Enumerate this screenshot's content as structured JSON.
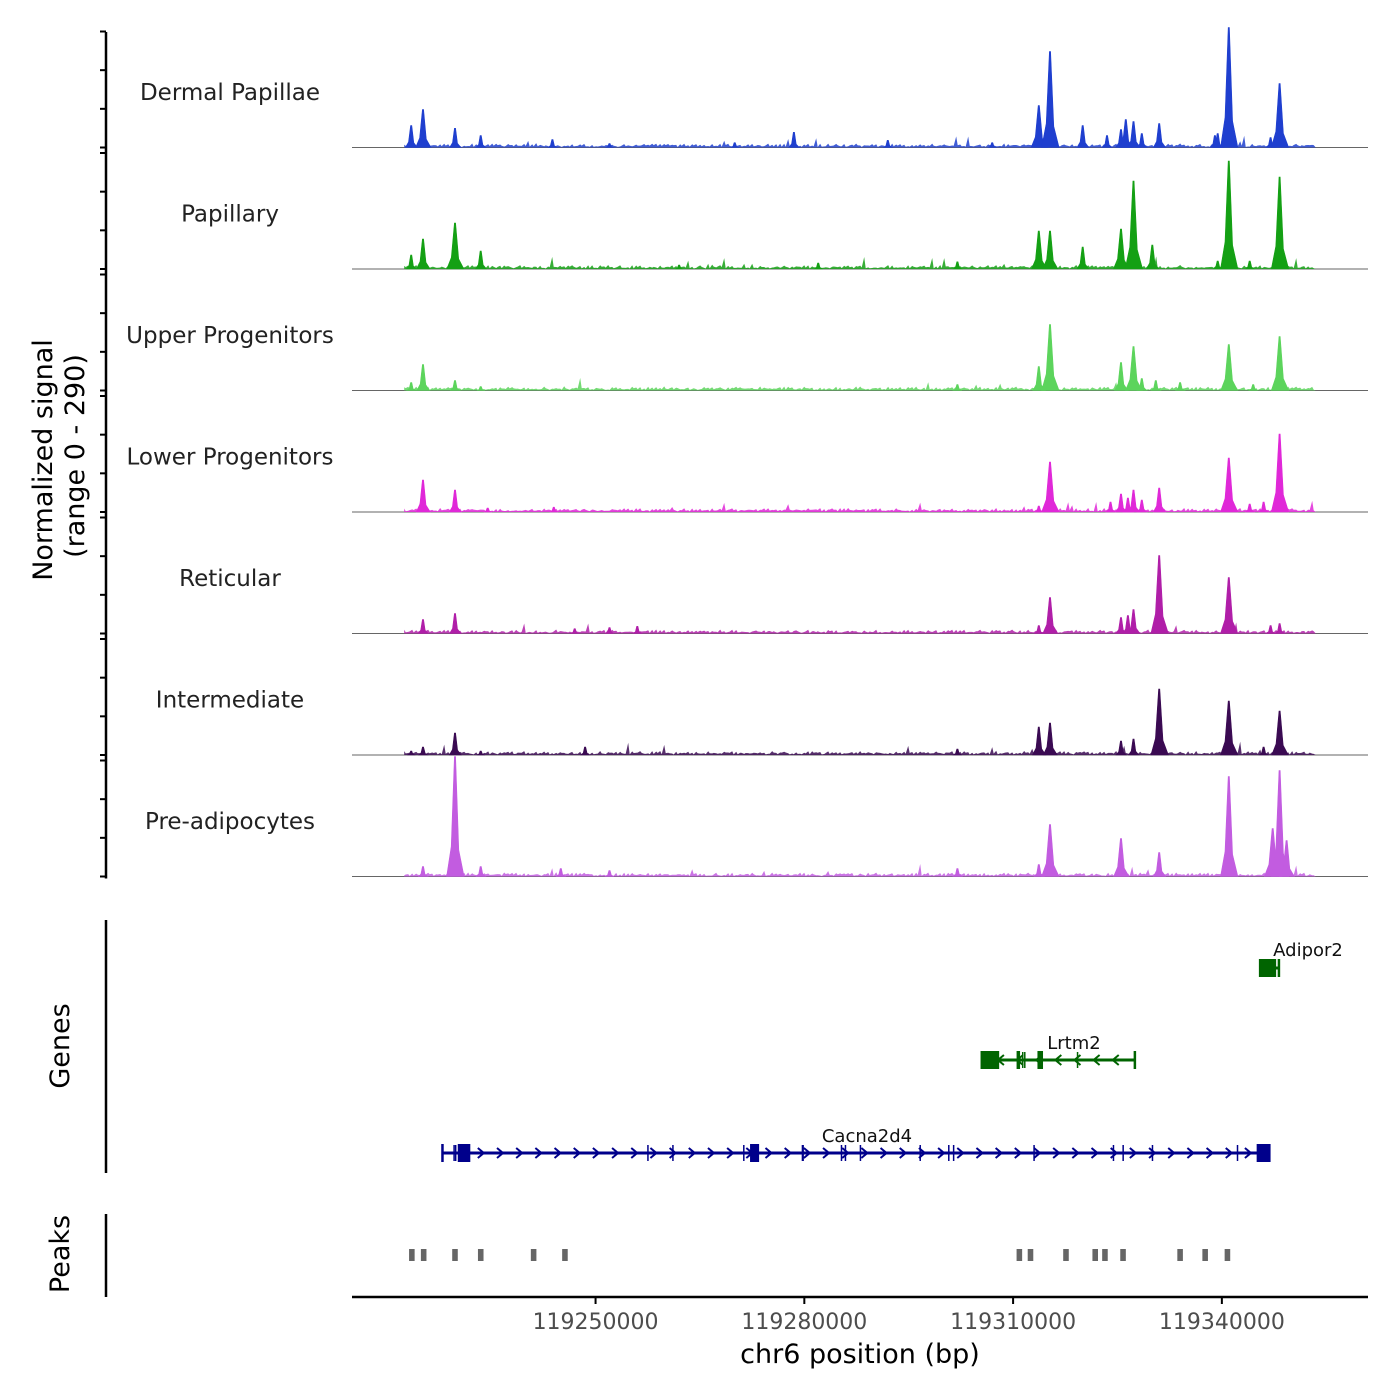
{
  "chart_data": {
    "type": "genome-coverage-track",
    "chromosome": "chr6",
    "xlabel": "chr6 position (bp)",
    "xlim": [
      119215000,
      119361000
    ],
    "x_ticks": [
      119250000,
      119280000,
      119310000,
      119340000
    ],
    "x_tick_labels": [
      "119250000",
      "119280000",
      "119310000",
      "119340000"
    ],
    "coverage": {
      "ylabel_line1": "Normalized signal",
      "ylabel_line2": "(range 0 - 290)",
      "ylim": [
        0,
        290
      ],
      "series": [
        {
          "name": "Dermal Papillae",
          "color": "#1f3fcf",
          "peaks": [
            [
              119223500,
              55
            ],
            [
              119225200,
              95
            ],
            [
              119229800,
              48
            ],
            [
              119233500,
              30
            ],
            [
              119243800,
              20
            ],
            [
              119252000,
              10
            ],
            [
              119270000,
              12
            ],
            [
              119278500,
              38
            ],
            [
              119292000,
              18
            ],
            [
              119307000,
              12
            ],
            [
              119313700,
              105
            ],
            [
              119315300,
              240
            ],
            [
              119320000,
              55
            ],
            [
              119323500,
              30
            ],
            [
              119325500,
              45
            ],
            [
              119326200,
              70
            ],
            [
              119327300,
              65
            ],
            [
              119328500,
              35
            ],
            [
              119331000,
              60
            ],
            [
              119339000,
              30
            ],
            [
              119339400,
              35
            ],
            [
              119341000,
              300
            ],
            [
              119347000,
              25
            ],
            [
              119348300,
              160
            ]
          ]
        },
        {
          "name": "Papillary",
          "color": "#14a014",
          "peaks": [
            [
              119223500,
              35
            ],
            [
              119225200,
              75
            ],
            [
              119229800,
              115
            ],
            [
              119233500,
              45
            ],
            [
              119262000,
              10
            ],
            [
              119282000,
              15
            ],
            [
              119302000,
              18
            ],
            [
              119313700,
              95
            ],
            [
              119315300,
              95
            ],
            [
              119320000,
              55
            ],
            [
              119325500,
              100
            ],
            [
              119327300,
              220
            ],
            [
              119330000,
              60
            ],
            [
              119339400,
              20
            ],
            [
              119341000,
              270
            ],
            [
              119344000,
              20
            ],
            [
              119348300,
              230
            ]
          ]
        },
        {
          "name": "Upper Progenitors",
          "color": "#5cd45c",
          "peaks": [
            [
              119223500,
              20
            ],
            [
              119225200,
              65
            ],
            [
              119229800,
              25
            ],
            [
              119233500,
              10
            ],
            [
              119302000,
              15
            ],
            [
              119313700,
              60
            ],
            [
              119315300,
              165
            ],
            [
              119325500,
              70
            ],
            [
              119327300,
              110
            ],
            [
              119328500,
              30
            ],
            [
              119330500,
              25
            ],
            [
              119334000,
              20
            ],
            [
              119341000,
              115
            ],
            [
              119344500,
              15
            ],
            [
              119348300,
              135
            ]
          ]
        },
        {
          "name": "Lower Progenitors",
          "color": "#e028d8",
          "peaks": [
            [
              119225200,
              80
            ],
            [
              119229800,
              55
            ],
            [
              119234500,
              10
            ],
            [
              119244000,
              12
            ],
            [
              119313700,
              15
            ],
            [
              119315300,
              125
            ],
            [
              119324000,
              25
            ],
            [
              119325500,
              45
            ],
            [
              119326500,
              35
            ],
            [
              119327300,
              55
            ],
            [
              119328500,
              30
            ],
            [
              119331000,
              60
            ],
            [
              119341000,
              135
            ],
            [
              119344000,
              20
            ],
            [
              119346000,
              25
            ],
            [
              119348300,
              195
            ]
          ]
        },
        {
          "name": "Reticular",
          "color": "#b01ea8",
          "peaks": [
            [
              119225200,
              35
            ],
            [
              119229800,
              50
            ],
            [
              119247000,
              12
            ],
            [
              119252000,
              15
            ],
            [
              119256000,
              18
            ],
            [
              119313700,
              20
            ],
            [
              119315300,
              90
            ],
            [
              119325500,
              40
            ],
            [
              119326500,
              45
            ],
            [
              119327300,
              60
            ],
            [
              119331000,
              195
            ],
            [
              119341000,
              140
            ],
            [
              119347000,
              20
            ],
            [
              119348300,
              25
            ]
          ]
        },
        {
          "name": "Intermediate",
          "color": "#3a0a52",
          "peaks": [
            [
              119223500,
              10
            ],
            [
              119225200,
              20
            ],
            [
              119229800,
              55
            ],
            [
              119233500,
              10
            ],
            [
              119248500,
              20
            ],
            [
              119302000,
              15
            ],
            [
              119313700,
              70
            ],
            [
              119315300,
              80
            ],
            [
              119325500,
              35
            ],
            [
              119327300,
              40
            ],
            [
              119331000,
              165
            ],
            [
              119341000,
              135
            ],
            [
              119346000,
              20
            ],
            [
              119348300,
              110
            ]
          ]
        },
        {
          "name": "Pre-adipocytes",
          "color": "#c25ce0",
          "peaks": [
            [
              119225200,
              25
            ],
            [
              119229800,
              310
            ],
            [
              119233500,
              25
            ],
            [
              119245000,
              20
            ],
            [
              119252000,
              15
            ],
            [
              119302000,
              20
            ],
            [
              119313700,
              30
            ],
            [
              119315300,
              130
            ],
            [
              119325500,
              95
            ],
            [
              119331000,
              60
            ],
            [
              119341000,
              250
            ],
            [
              119347300,
              120
            ],
            [
              119348300,
              265
            ],
            [
              119349300,
              90
            ]
          ]
        }
      ]
    },
    "genes": {
      "ylabel": "Genes",
      "items": [
        {
          "name": "Adipor2",
          "start": 119345500,
          "end": 119348200,
          "strand": "-",
          "color": "#006400",
          "exons": [
            [
              119345500,
              119347800
            ]
          ]
        },
        {
          "name": "Lrtm2",
          "start": 119305500,
          "end": 119327500,
          "strand": "-",
          "color": "#006400",
          "exons": [
            [
              119305500,
              119308000
            ],
            [
              119310500,
              119311000
            ],
            [
              119313500,
              119314300
            ]
          ]
        },
        {
          "name": "Cacna2d4",
          "start": 119228000,
          "end": 119346500,
          "strand": "+",
          "color": "#00008b",
          "exons": [
            [
              119230200,
              119232000
            ],
            [
              119272200,
              119273500
            ],
            [
              119345000,
              119347000
            ]
          ]
        }
      ]
    },
    "peaks": {
      "ylabel": "Peaks",
      "color": "#666666",
      "regions": [
        [
          119223200,
          119224000
        ],
        [
          119224900,
          119225700
        ],
        [
          119229400,
          119230200
        ],
        [
          119233100,
          119233900
        ],
        [
          119240700,
          119241500
        ],
        [
          119245200,
          119246000
        ],
        [
          119310500,
          119311300
        ],
        [
          119312100,
          119312900
        ],
        [
          119317200,
          119318000
        ],
        [
          119321400,
          119322200
        ],
        [
          119322800,
          119323600
        ],
        [
          119325400,
          119326200
        ],
        [
          119333600,
          119334400
        ],
        [
          119337200,
          119338000
        ],
        [
          119340400,
          119341200
        ]
      ]
    }
  }
}
